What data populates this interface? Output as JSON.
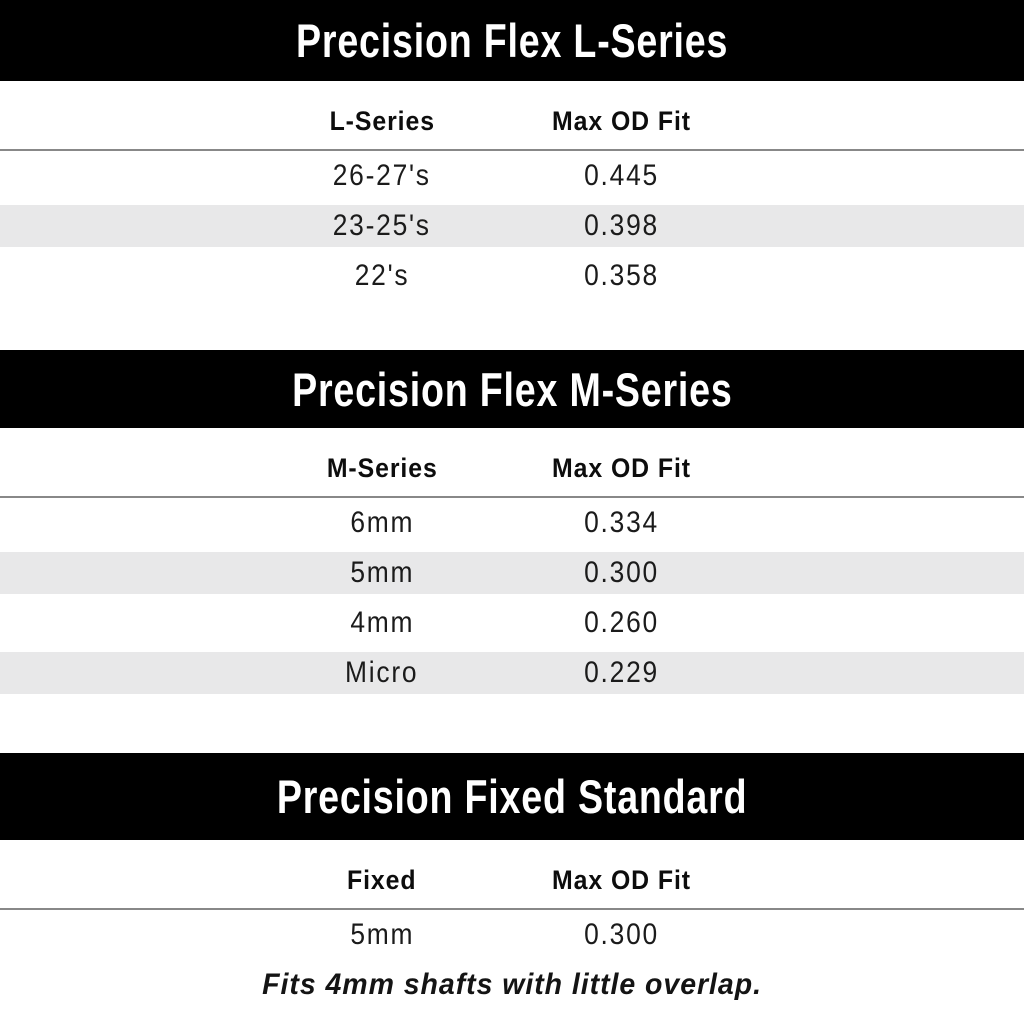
{
  "colors": {
    "banner_bg": "#000000",
    "banner_text": "#ffffff",
    "stripe": "#e8e8e9",
    "header_rule": "#888888",
    "body_text": "#1b1b1b",
    "page_bg": "#ffffff"
  },
  "chart_data": [
    {
      "type": "table",
      "title": "Precision Flex L-Series",
      "columns": [
        "L-Series",
        "Max OD Fit"
      ],
      "rows": [
        [
          "26-27's",
          "0.445"
        ],
        [
          "23-25's",
          "0.398"
        ],
        [
          "22's",
          "0.358"
        ]
      ]
    },
    {
      "type": "table",
      "title": "Precision Flex M-Series",
      "columns": [
        "M-Series",
        "Max OD Fit"
      ],
      "rows": [
        [
          "6mm",
          "0.334"
        ],
        [
          "5mm",
          "0.300"
        ],
        [
          "4mm",
          "0.260"
        ],
        [
          "Micro",
          "0.229"
        ]
      ]
    },
    {
      "type": "table",
      "title": "Precision Fixed Standard",
      "columns": [
        "Fixed",
        "Max OD Fit"
      ],
      "rows": [
        [
          "5mm",
          "0.300"
        ]
      ],
      "note": "Fits 4mm shafts with little overlap."
    }
  ]
}
